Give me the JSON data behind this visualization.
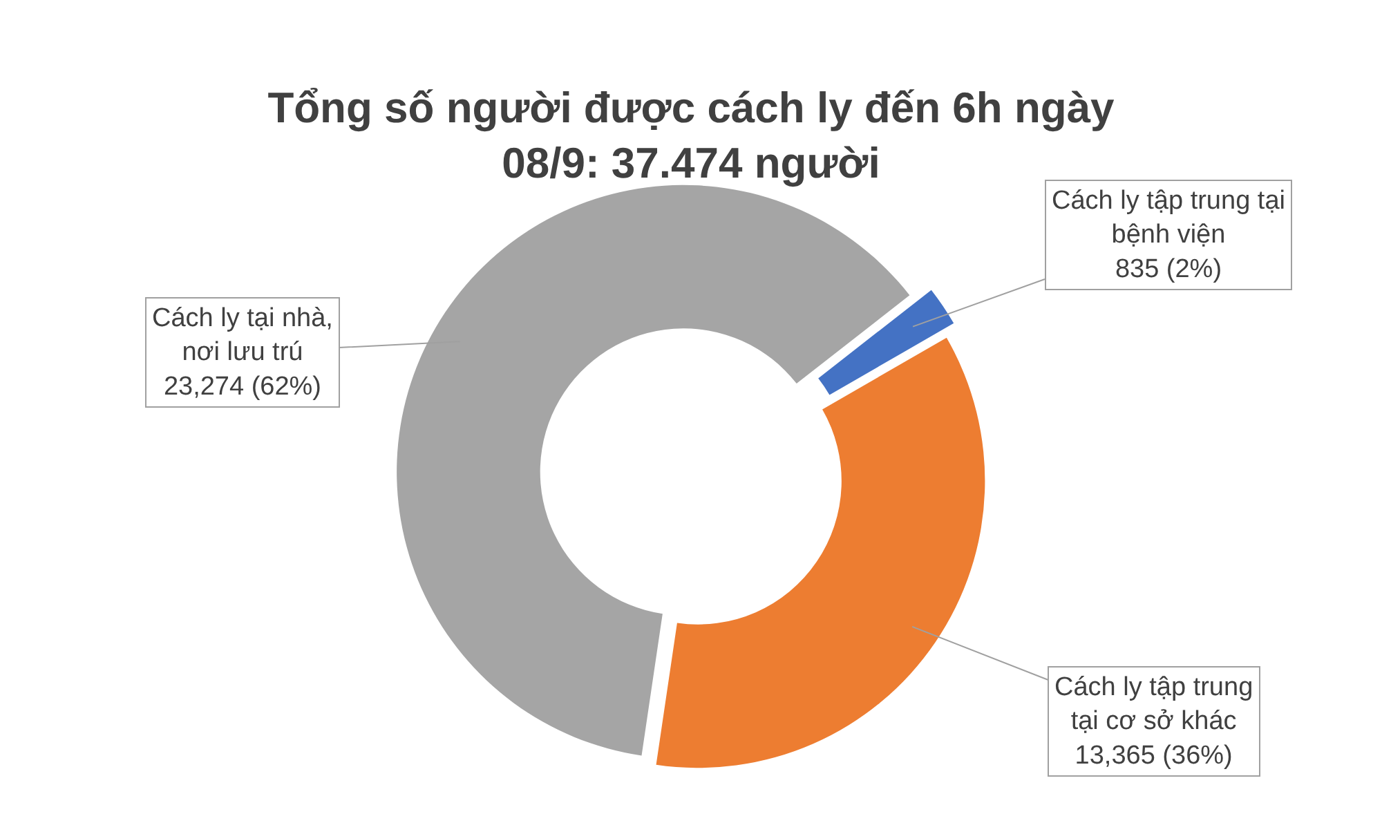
{
  "chart_data": {
    "type": "donut",
    "title": "Tổng số người được cách ly đến 6h ngày\n08/9: 37.474 người",
    "categories": [
      "Cách ly tập trung tại\nbệnh viện",
      "Cách ly tập trung\ntại cơ sở khác",
      "Cách ly tại nhà,\nnơi lưu trú"
    ],
    "values": [
      835,
      13365,
      23274
    ],
    "colors": [
      "#4472c4",
      "#ed7d31",
      "#a5a5a5"
    ],
    "value_labels": [
      "835 (2%)",
      "13,365 (36%)",
      "23,274 (62%)"
    ]
  }
}
